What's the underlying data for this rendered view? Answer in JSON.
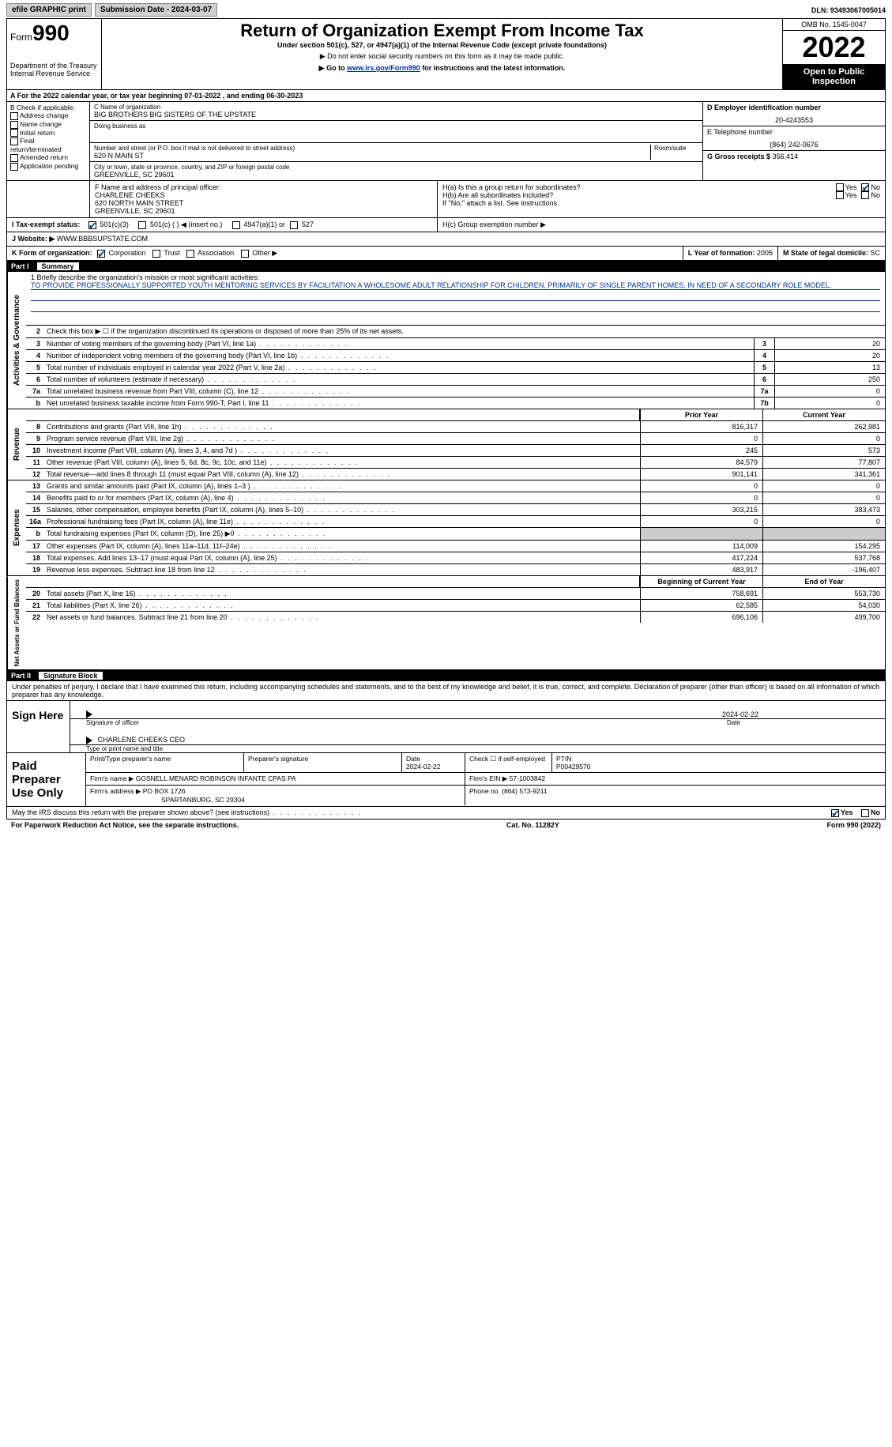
{
  "topbar": {
    "efile": "efile GRAPHIC print",
    "submission": "Submission Date - 2024-03-07",
    "dln": "DLN: 93493067005014"
  },
  "header": {
    "form_label": "Form",
    "form_num": "990",
    "dept": "Department of the Treasury",
    "irs": "Internal Revenue Service",
    "title": "Return of Organization Exempt From Income Tax",
    "sub1": "Under section 501(c), 527, or 4947(a)(1) of the Internal Revenue Code (except private foundations)",
    "sub2": "▶ Do not enter social security numbers on this form as it may be made public.",
    "sub3_pre": "▶ Go to ",
    "sub3_link": "www.irs.gov/Form990",
    "sub3_post": " for instructions and the latest information.",
    "omb": "OMB No. 1545-0047",
    "year": "2022",
    "open": "Open to Public Inspection"
  },
  "row_a": "A For the 2022 calendar year, or tax year beginning 07-01-2022    , and ending 06-30-2023",
  "col_b": {
    "hdr": "B Check if applicable:",
    "items": [
      "Address change",
      "Name change",
      "Initial return",
      "Final return/terminated",
      "Amended return",
      "Application pending"
    ]
  },
  "col_c": {
    "name_lbl": "C Name of organization",
    "name": "BIG BROTHERS BIG SISTERS OF THE UPSTATE",
    "dba_lbl": "Doing business as",
    "addr_lbl": "Number and street (or P.O. box if mail is not delivered to street address)",
    "room_lbl": "Room/suite",
    "addr": "620 N MAIN ST",
    "city_lbl": "City or town, state or province, country, and ZIP or foreign postal code",
    "city": "GREENVILLE, SC  29601"
  },
  "col_d": {
    "d_lbl": "D Employer identification number",
    "ein": "20-4243553",
    "e_lbl": "E Telephone number",
    "phone": "(864) 242-0676",
    "g_lbl": "G Gross receipts $",
    "gross": "356,414"
  },
  "principal": {
    "lbl": "F  Name and address of principal officer:",
    "name": "CHARLENE CHEEKS",
    "addr1": "620 NORTH MAIN STREET",
    "addr2": "GREENVILLE, SC  29601"
  },
  "h_info": {
    "ha": "H(a)   Is this a group return for subordinates?",
    "hb": "H(b)   Are all subordinates included?",
    "note": "If \"No,\" attach a list. See instructions.",
    "hc": "H(c)   Group exemption number ▶",
    "yes": "Yes",
    "no": "No"
  },
  "exempt": {
    "i_lbl": "I    Tax-exempt status:",
    "opt1": "501(c)(3)",
    "opt2": "501(c) (  ) ◀ (insert no.)",
    "opt3": "4947(a)(1) or",
    "opt4": "527"
  },
  "website": {
    "lbl": "J   Website: ▶",
    "url": "WWW.BBBSUPSTATE.COM"
  },
  "k_row": {
    "k_lbl": "K Form of organization:",
    "opts": [
      "Corporation",
      "Trust",
      "Association",
      "Other ▶"
    ],
    "l_lbl": "L Year of formation:",
    "l_val": "2005",
    "m_lbl": "M State of legal domicile:",
    "m_val": "SC"
  },
  "part1": {
    "num": "Part I",
    "title": "Summary"
  },
  "mission": {
    "q1": "1   Briefly describe the organization's mission or most significant activities:",
    "text": "TO PROVIDE PROFESSIONALLY SUPPORTED YOUTH MENTORING SERVICES BY FACILITATION A WHOLESOME ADULT RELATIONSHIP FOR CHILDREN, PRIMARILY OF SINGLE PARENT HOMES, IN NEED OF A SECONDARY ROLE MODEL."
  },
  "side_labels": {
    "ag": "Activities & Governance",
    "rev": "Revenue",
    "exp": "Expenses",
    "na": "Net Assets or Fund Balances"
  },
  "summary_lines": {
    "l2": "Check this box ▶ ☐  if the organization discontinued its operations or disposed of more than 25% of its net assets.",
    "l3": {
      "n": "3",
      "t": "Number of voting members of the governing body (Part VI, line 1a)",
      "a": "3",
      "v": "20"
    },
    "l4": {
      "n": "4",
      "t": "Number of independent voting members of the governing body (Part VI, line 1b)",
      "a": "4",
      "v": "20"
    },
    "l5": {
      "n": "5",
      "t": "Total number of individuals employed in calendar year 2022 (Part V, line 2a)",
      "a": "5",
      "v": "13"
    },
    "l6": {
      "n": "6",
      "t": "Total number of volunteers (estimate if necessary)",
      "a": "6",
      "v": "250"
    },
    "l7a": {
      "n": "7a",
      "t": "Total unrelated business revenue from Part VIII, column (C), line 12",
      "a": "7a",
      "v": "0"
    },
    "l7b": {
      "n": "b",
      "t": "Net unrelated business taxable income from Form 990-T, Part I, line 11",
      "a": "7b",
      "v": "0"
    }
  },
  "rev_hdr": {
    "prior": "Prior Year",
    "current": "Current Year"
  },
  "rev_lines": [
    {
      "n": "8",
      "t": "Contributions and grants (Part VIII, line 1h)",
      "p": "816,317",
      "c": "262,981"
    },
    {
      "n": "9",
      "t": "Program service revenue (Part VIII, line 2g)",
      "p": "0",
      "c": "0"
    },
    {
      "n": "10",
      "t": "Investment income (Part VIII, column (A), lines 3, 4, and 7d )",
      "p": "245",
      "c": "573"
    },
    {
      "n": "11",
      "t": "Other revenue (Part VIII, column (A), lines 5, 6d, 8c, 9c, 10c, and 11e)",
      "p": "84,579",
      "c": "77,807"
    },
    {
      "n": "12",
      "t": "Total revenue—add lines 8 through 11 (must equal Part VIII, column (A), line 12)",
      "p": "901,141",
      "c": "341,361"
    }
  ],
  "exp_lines": [
    {
      "n": "13",
      "t": "Grants and similar amounts paid (Part IX, column (A), lines 1–3 )",
      "p": "0",
      "c": "0"
    },
    {
      "n": "14",
      "t": "Benefits paid to or for members (Part IX, column (A), line 4)",
      "p": "0",
      "c": "0"
    },
    {
      "n": "15",
      "t": "Salaries, other compensation, employee benefits (Part IX, column (A), lines 5–10)",
      "p": "303,215",
      "c": "383,473"
    },
    {
      "n": "16a",
      "t": "Professional fundraising fees (Part IX, column (A), line 11e)",
      "p": "0",
      "c": "0"
    },
    {
      "n": "b",
      "t": "Total fundraising expenses (Part IX, column (D), line 25) ▶0",
      "p": "",
      "c": "",
      "gray": true
    },
    {
      "n": "17",
      "t": "Other expenses (Part IX, column (A), lines 11a–11d, 11f–24e)",
      "p": "114,009",
      "c": "154,295"
    },
    {
      "n": "18",
      "t": "Total expenses. Add lines 13–17 (must equal Part IX, column (A), line 25)",
      "p": "417,224",
      "c": "537,768"
    },
    {
      "n": "19",
      "t": "Revenue less expenses. Subtract line 18 from line 12",
      "p": "483,917",
      "c": "-196,407"
    }
  ],
  "na_hdr": {
    "begin": "Beginning of Current Year",
    "end": "End of Year"
  },
  "na_lines": [
    {
      "n": "20",
      "t": "Total assets (Part X, line 16)",
      "p": "758,691",
      "c": "553,730"
    },
    {
      "n": "21",
      "t": "Total liabilities (Part X, line 26)",
      "p": "62,585",
      "c": "54,030"
    },
    {
      "n": "22",
      "t": "Net assets or fund balances. Subtract line 21 from line 20",
      "p": "696,106",
      "c": "499,700"
    }
  ],
  "part2": {
    "num": "Part II",
    "title": "Signature Block"
  },
  "sig_para": "Under penalties of perjury, I declare that I have examined this return, including accompanying schedules and statements, and to the best of my knowledge and belief, it is true, correct, and complete. Declaration of preparer (other than officer) is based on all information of which preparer has any knowledge.",
  "sign": {
    "here": "Sign Here",
    "sig_lbl": "Signature of officer",
    "date": "2024-02-22",
    "date_lbl": "Date",
    "name": "CHARLENE CHEEKS  CEO",
    "type_lbl": "Type or print name and title"
  },
  "prep": {
    "title": "Paid Preparer Use Only",
    "print_lbl": "Print/Type preparer's name",
    "sig_lbl": "Preparer's signature",
    "date_lbl": "Date",
    "date": "2024-02-22",
    "check_lbl": "Check ☐ if self-employed",
    "ptin_lbl": "PTIN",
    "ptin": "P00429570",
    "firm_name_lbl": "Firm's name     ▶",
    "firm_name": "GOSNELL MENARD ROBINSON INFANTE CPAS PA",
    "firm_ein_lbl": "Firm's EIN ▶",
    "firm_ein": "57-1003842",
    "firm_addr_lbl": "Firm's address ▶",
    "firm_addr1": "PO BOX 1726",
    "firm_addr2": "SPARTANBURG, SC  29304",
    "phone_lbl": "Phone no.",
    "phone": "(864) 573-9211"
  },
  "discuss": {
    "text": "May the IRS discuss this return with the preparer shown above? (see instructions)",
    "yes": "Yes",
    "no": "No"
  },
  "footer": {
    "pra": "For Paperwork Reduction Act Notice, see the separate instructions.",
    "cat": "Cat. No. 11282Y",
    "form": "Form 990 (2022)"
  }
}
